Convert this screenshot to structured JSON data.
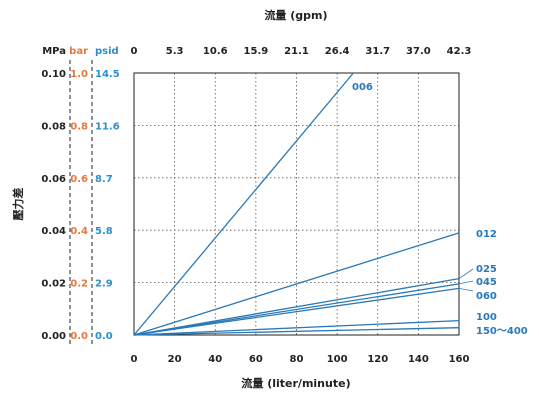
{
  "chart_data": {
    "type": "line",
    "title": "",
    "xlabel": "流量 (liter/minute)",
    "x2label": "流量 (gpm)",
    "ylabel": "壓力差",
    "xlim": [
      0,
      160
    ],
    "ylim": [
      0,
      0.1
    ],
    "grid": true,
    "x_ticks": [
      "0",
      "20",
      "40",
      "60",
      "80",
      "100",
      "120",
      "140",
      "160"
    ],
    "x2_ticks": [
      "0",
      "5.3",
      "10.6",
      "15.9",
      "21.1",
      "26.4",
      "31.7",
      "37.0",
      "42.3"
    ],
    "y_axes": [
      {
        "unit": "MPa",
        "color": "#222222",
        "ticks": [
          "0.00",
          "0.02",
          "0.04",
          "0.06",
          "0.08",
          "0.10"
        ]
      },
      {
        "unit": "bar",
        "color": "#e8763a",
        "ticks": [
          "0.0",
          "0.2",
          "0.4",
          "0.6",
          "0.8",
          "1.0"
        ]
      },
      {
        "unit": "psid",
        "color": "#2a8fd0",
        "ticks": [
          "0.0",
          "2.9",
          "5.8",
          "8.7",
          "11.6",
          "14.5"
        ]
      }
    ],
    "line_color": "#2a79b8",
    "series": [
      {
        "name": "006",
        "x": [
          0,
          108
        ],
        "y": [
          0,
          0.1
        ]
      },
      {
        "name": "012",
        "x": [
          0,
          160
        ],
        "y": [
          0,
          0.039
        ]
      },
      {
        "name": "025",
        "x": [
          0,
          160
        ],
        "y": [
          0,
          0.0215
        ]
      },
      {
        "name": "045",
        "x": [
          0,
          160
        ],
        "y": [
          0,
          0.0195
        ]
      },
      {
        "name": "060",
        "x": [
          0,
          160
        ],
        "y": [
          0,
          0.0178
        ]
      },
      {
        "name": "100",
        "x": [
          0,
          160
        ],
        "y": [
          0,
          0.0055
        ]
      },
      {
        "name": "150～400",
        "x": [
          0,
          160
        ],
        "y": [
          0,
          0.0028
        ]
      }
    ]
  }
}
